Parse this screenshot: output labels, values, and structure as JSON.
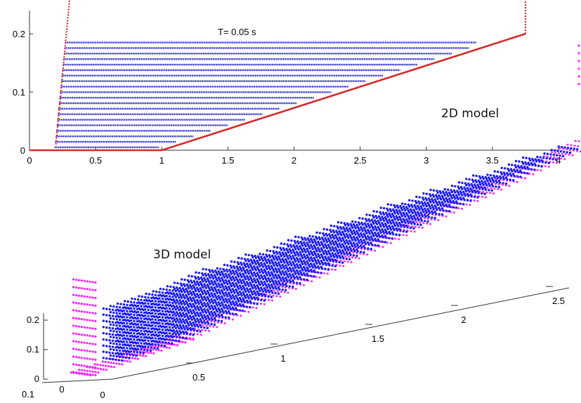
{
  "chart_data": [
    {
      "name": "2D model",
      "type": "scatter",
      "annotation_time": "T= 0.05 s",
      "model_label": "2D model",
      "xlim": [
        0,
        4
      ],
      "ylim": [
        0,
        0.24
      ],
      "x_ticks": [
        "0",
        "0.5",
        "1",
        "1.5",
        "2",
        "2.5",
        "3",
        "3.5",
        "4"
      ],
      "y_ticks": [
        "0",
        "0.1",
        "0.2"
      ],
      "grid": false,
      "colors": {
        "particles": "#1f1fbf",
        "boundary": "#d42a2a"
      },
      "boundary": {
        "floor": [
          [
            0,
            0
          ],
          [
            1,
            0
          ]
        ],
        "slope": [
          [
            1,
            0
          ],
          [
            3.75,
            0.2
          ]
        ],
        "left_wall": [
          [
            0.2,
            0.01
          ],
          [
            0.32,
            0.3
          ]
        ],
        "right_wall": [
          [
            3.75,
            0.2
          ],
          [
            3.75,
            0.3
          ]
        ]
      },
      "layers": {
        "count": 20,
        "y_min": 0.005,
        "y_max": 0.185,
        "x_left_bottom": 0.19,
        "x_left_top": 0.27,
        "x_right_top": 3.38,
        "x_right_top_layer": 3.38,
        "tip_x": 3.38,
        "tip_y": 0.185
      }
    },
    {
      "name": "3D model",
      "type": "scatter3d",
      "model_label": "3D model",
      "x_ticks": [
        "0.5",
        "1",
        "1.5",
        "2",
        "2.5"
      ],
      "y_ticks": [
        "0.1",
        "0",
        "0"
      ],
      "z_ticks": [
        "0",
        "0.1",
        "0.2"
      ],
      "colors": {
        "fluid": "#1a1aff",
        "walls": "#ff22ff"
      }
    }
  ]
}
